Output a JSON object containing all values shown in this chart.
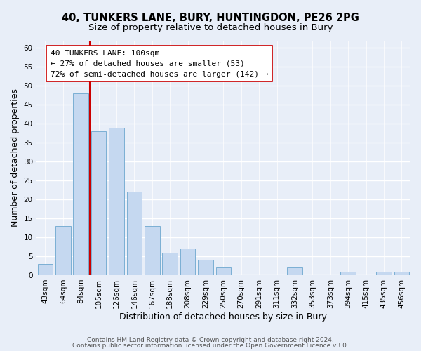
{
  "title1": "40, TUNKERS LANE, BURY, HUNTINGDON, PE26 2PG",
  "title2": "Size of property relative to detached houses in Bury",
  "xlabel": "Distribution of detached houses by size in Bury",
  "ylabel": "Number of detached properties",
  "bar_labels": [
    "43sqm",
    "64sqm",
    "84sqm",
    "105sqm",
    "126sqm",
    "146sqm",
    "167sqm",
    "188sqm",
    "208sqm",
    "229sqm",
    "250sqm",
    "270sqm",
    "291sqm",
    "311sqm",
    "332sqm",
    "353sqm",
    "373sqm",
    "394sqm",
    "415sqm",
    "435sqm",
    "456sqm"
  ],
  "bar_values": [
    3,
    13,
    48,
    38,
    39,
    22,
    13,
    6,
    7,
    4,
    2,
    0,
    0,
    0,
    2,
    0,
    0,
    1,
    0,
    1,
    1
  ],
  "bar_color": "#c5d8f0",
  "bar_edge_color": "#7bafd4",
  "vline_color": "#cc0000",
  "annotation_text": "40 TUNKERS LANE: 100sqm\n← 27% of detached houses are smaller (53)\n72% of semi-detached houses are larger (142) →",
  "annotation_box_color": "#ffffff",
  "annotation_box_edge": "#cc0000",
  "ylim": [
    0,
    62
  ],
  "yticks": [
    0,
    5,
    10,
    15,
    20,
    25,
    30,
    35,
    40,
    45,
    50,
    55,
    60
  ],
  "footer1": "Contains HM Land Registry data © Crown copyright and database right 2024.",
  "footer2": "Contains public sector information licensed under the Open Government Licence v3.0.",
  "bg_color": "#e8eef8",
  "plot_bg_color": "#e8eef8",
  "grid_color": "#ffffff",
  "title1_fontsize": 10.5,
  "title2_fontsize": 9.5,
  "axis_label_fontsize": 9,
  "tick_fontsize": 7.5,
  "annotation_fontsize": 8,
  "footer_fontsize": 6.5
}
